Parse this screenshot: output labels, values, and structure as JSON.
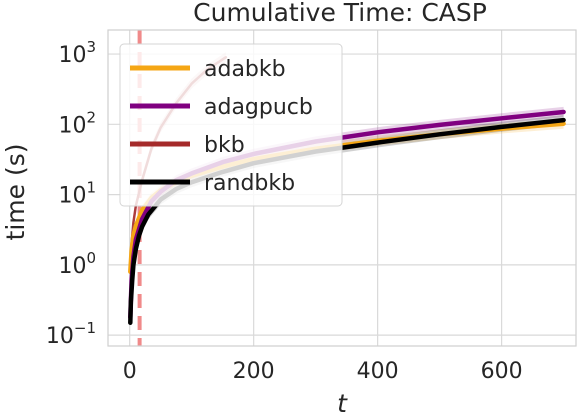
{
  "chart_data": {
    "type": "line",
    "title": "Cumulative Time: CASP",
    "xlabel": "t",
    "ylabel": "time (s)",
    "xlim": [
      -35,
      720
    ],
    "ylim": [
      0.07,
      2200
    ],
    "yscale": "log",
    "grid": true,
    "legend_position": "top-left",
    "x_ticks": [
      0,
      200,
      400,
      600
    ],
    "y_ticks": [
      {
        "value": 0.1,
        "base": "10",
        "exp": "−1"
      },
      {
        "value": 1,
        "base": "10",
        "exp": "0"
      },
      {
        "value": 10,
        "base": "10",
        "exp": "1"
      },
      {
        "value": 100,
        "base": "10",
        "exp": "2"
      },
      {
        "value": 1000,
        "base": "10",
        "exp": "3"
      }
    ],
    "vertical_line": {
      "x": 16,
      "color": "#f08a8a",
      "style": "dashed"
    },
    "series": [
      {
        "name": "adabkb",
        "color": "#f5a614",
        "x": [
          1,
          3,
          6,
          10,
          20,
          35,
          50,
          75,
          100,
          150,
          200,
          300,
          400,
          500,
          600,
          700
        ],
        "y": [
          0.8,
          1.6,
          2.6,
          3.6,
          6.0,
          9.0,
          11.5,
          15.0,
          18.5,
          25.0,
          32.0,
          45.0,
          58.0,
          72.0,
          87.0,
          102.0
        ]
      },
      {
        "name": "adagpucb",
        "color": "#800080",
        "x": [
          1,
          3,
          6,
          10,
          20,
          35,
          50,
          75,
          100,
          150,
          200,
          300,
          400,
          500,
          600,
          700
        ],
        "y": [
          0.18,
          0.6,
          1.3,
          2.3,
          4.5,
          8.0,
          11.0,
          16.0,
          20.0,
          29.0,
          38.0,
          57.0,
          77.0,
          98.0,
          122.0,
          150.0
        ]
      },
      {
        "name": "bkb",
        "color": "#a52a2a",
        "x": [
          1,
          3,
          6,
          10,
          20,
          35,
          50,
          75,
          100,
          125,
          155
        ],
        "y": [
          0.8,
          2.0,
          4.0,
          7.0,
          16.0,
          45.0,
          90.0,
          200.0,
          380.0,
          600.0,
          900.0
        ]
      },
      {
        "name": "randbkb",
        "color": "#000000",
        "x": [
          1,
          2,
          4,
          6,
          10,
          15,
          20,
          30,
          50,
          75,
          100,
          150,
          200,
          300,
          400,
          500,
          600,
          700
        ],
        "y": [
          0.15,
          0.3,
          0.6,
          1.0,
          1.7,
          2.6,
          3.5,
          5.2,
          8.5,
          12.0,
          15.0,
          21.0,
          28.0,
          41.0,
          55.0,
          72.0,
          92.0,
          115.0
        ]
      }
    ]
  }
}
